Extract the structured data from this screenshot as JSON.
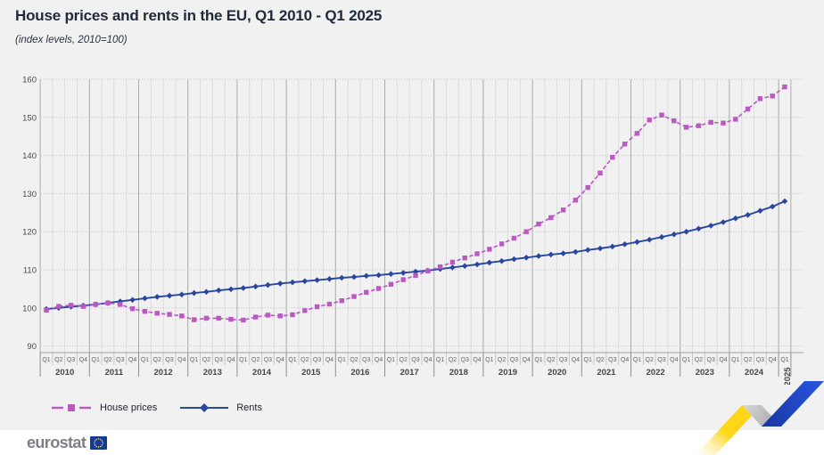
{
  "chart_data": {
    "type": "line",
    "title": "House prices and rents in the EU, Q1 2010 - Q1 2025",
    "subtitle": "(index levels, 2010=100)",
    "xlabel": "",
    "ylabel": "",
    "ylim": [
      90,
      160
    ],
    "grid": true,
    "legend_position": "bottom-left",
    "y_axis": {
      "ticks": [
        90,
        100,
        110,
        120,
        130,
        140,
        150,
        160
      ]
    },
    "x_axis": {
      "years": [
        {
          "label": "2010",
          "quarters": [
            "Q1",
            "Q2",
            "Q3",
            "Q4"
          ],
          "vertical": false
        },
        {
          "label": "2011",
          "quarters": [
            "Q1",
            "Q2",
            "Q3",
            "Q4"
          ],
          "vertical": false
        },
        {
          "label": "2012",
          "quarters": [
            "Q1",
            "Q2",
            "Q3",
            "Q4"
          ],
          "vertical": false
        },
        {
          "label": "2013",
          "quarters": [
            "Q1",
            "Q2",
            "Q3",
            "Q4"
          ],
          "vertical": false
        },
        {
          "label": "2014",
          "quarters": [
            "Q1",
            "Q2",
            "Q3",
            "Q4"
          ],
          "vertical": false
        },
        {
          "label": "2015",
          "quarters": [
            "Q1",
            "Q2",
            "Q3",
            "Q4"
          ],
          "vertical": false
        },
        {
          "label": "2016",
          "quarters": [
            "Q1",
            "Q2",
            "Q3",
            "Q4"
          ],
          "vertical": false
        },
        {
          "label": "2017",
          "quarters": [
            "Q1",
            "Q2",
            "Q3",
            "Q4"
          ],
          "vertical": false
        },
        {
          "label": "2018",
          "quarters": [
            "Q1",
            "Q2",
            "Q3",
            "Q4"
          ],
          "vertical": false
        },
        {
          "label": "2019",
          "quarters": [
            "Q1",
            "Q2",
            "Q3",
            "Q4"
          ],
          "vertical": false
        },
        {
          "label": "2020",
          "quarters": [
            "Q1",
            "Q2",
            "Q3",
            "Q4"
          ],
          "vertical": false
        },
        {
          "label": "2021",
          "quarters": [
            "Q1",
            "Q2",
            "Q3",
            "Q4"
          ],
          "vertical": false
        },
        {
          "label": "2022",
          "quarters": [
            "Q1",
            "Q2",
            "Q3",
            "Q4"
          ],
          "vertical": false
        },
        {
          "label": "2023",
          "quarters": [
            "Q1",
            "Q2",
            "Q3",
            "Q4"
          ],
          "vertical": false
        },
        {
          "label": "2024",
          "quarters": [
            "Q1",
            "Q2",
            "Q3",
            "Q4"
          ],
          "vertical": false
        },
        {
          "label": "2025",
          "quarters": [
            "Q1"
          ],
          "vertical": true
        }
      ]
    },
    "series": [
      {
        "name": "House prices",
        "color": "#BB58C2",
        "style": "dashed",
        "marker": "square",
        "values": [
          99.4,
          100.4,
          100.7,
          100.4,
          100.9,
          101.3,
          100.9,
          99.8,
          99.1,
          98.6,
          98.3,
          97.9,
          96.9,
          97.3,
          97.3,
          97.0,
          96.8,
          97.6,
          98.1,
          97.9,
          98.2,
          99.3,
          100.3,
          101.0,
          101.9,
          103.0,
          104.1,
          105.1,
          106.2,
          107.4,
          108.5,
          109.7,
          110.8,
          112.0,
          113.1,
          114.2,
          115.4,
          116.8,
          118.3,
          120.0,
          122.0,
          123.7,
          125.7,
          128.3,
          131.6,
          135.4,
          139.5,
          143.0,
          145.8,
          149.3,
          150.6,
          149.1,
          147.4,
          147.8,
          148.7,
          148.5,
          149.5,
          152.2,
          154.9,
          155.6,
          158.0
        ]
      },
      {
        "name": "Rents",
        "color": "#2A469F",
        "style": "solid",
        "marker": "diamond",
        "values": [
          99.7,
          100.0,
          100.3,
          100.6,
          100.9,
          101.3,
          101.7,
          102.1,
          102.5,
          102.9,
          103.2,
          103.5,
          103.9,
          104.2,
          104.6,
          104.9,
          105.2,
          105.6,
          106.0,
          106.4,
          106.7,
          107.0,
          107.3,
          107.6,
          107.9,
          108.1,
          108.4,
          108.6,
          108.9,
          109.2,
          109.5,
          109.8,
          110.2,
          110.6,
          111.0,
          111.4,
          111.9,
          112.3,
          112.8,
          113.2,
          113.6,
          114.0,
          114.3,
          114.7,
          115.2,
          115.6,
          116.1,
          116.7,
          117.3,
          117.9,
          118.6,
          119.3,
          120.0,
          120.8,
          121.6,
          122.5,
          123.5,
          124.4,
          125.5,
          126.6,
          128.0
        ]
      }
    ]
  },
  "legend": {
    "items": [
      {
        "label": "House prices"
      },
      {
        "label": "Rents"
      }
    ]
  },
  "footer": {
    "logo_text": "eurostat"
  },
  "colors": {
    "house_prices": "#BB58C2",
    "rents": "#2A469F",
    "deco_yellow": "#FFD617",
    "deco_yellow_fade": "#FFF7CE",
    "deco_grey_light": "#D9D9D9",
    "deco_grey_dark": "#A3A3A3",
    "deco_blue_light": "#2B55E2",
    "deco_blue_dark": "#16379F",
    "eu_flag_blue": "#123A9B",
    "eu_flag_yellow": "#FFD617",
    "logo_grey": "#7E8083",
    "chart_background": "#F1F1F1"
  }
}
